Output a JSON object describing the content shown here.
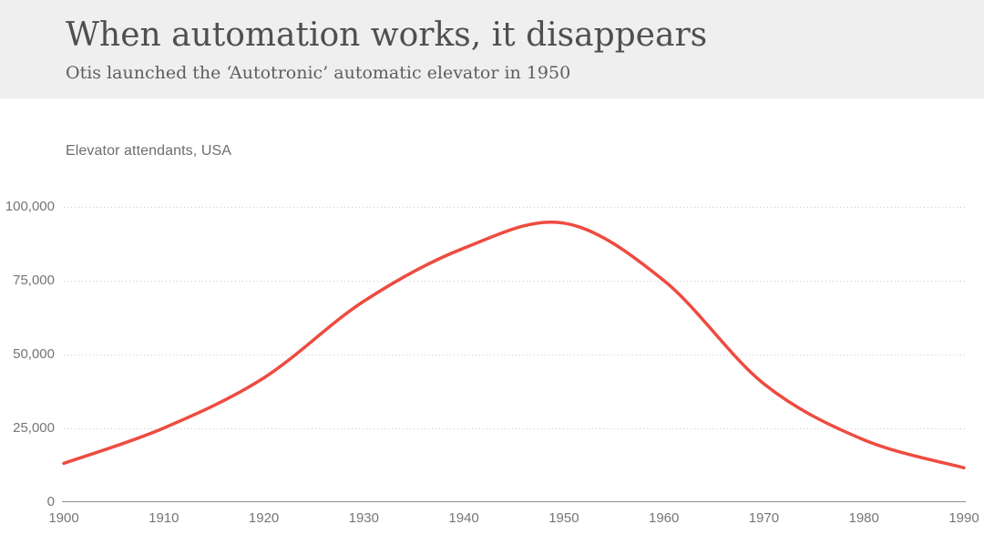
{
  "header": {
    "title": "When automation works, it disappears",
    "subtitle": "Otis launched the ‘Autotronic’ automatic elevator in 1950"
  },
  "colors": {
    "header_background": "#efefef",
    "line": "#ee4b40",
    "title_text": "#4f4f4f",
    "subtitle_text": "#5e5e5e",
    "tick_text": "#757575",
    "gridline": "#cbcbcb",
    "axis_line": "#8f8f8f"
  },
  "chart_data": {
    "type": "line",
    "title": "When automation works, it disappears",
    "subtitle": "Otis launched the ‘Autotronic’ automatic elevator in 1950",
    "series_label": "Elevator attendants, USA",
    "x": [
      1900,
      1910,
      1920,
      1930,
      1940,
      1950,
      1960,
      1970,
      1980,
      1990
    ],
    "values": [
      13000,
      25000,
      42000,
      68000,
      86000,
      94500,
      75000,
      40000,
      21000,
      11500
    ],
    "peak": {
      "year": 1950,
      "value": 94500
    },
    "xlim": [
      1900,
      1990
    ],
    "ylim": [
      0,
      100000
    ],
    "grid": "horizontal-dotted",
    "legend": "none",
    "line_color": "#ee4b40",
    "y_ticks": [
      {
        "value": 0,
        "label": "0"
      },
      {
        "value": 25000,
        "label": "25,000"
      },
      {
        "value": 50000,
        "label": "50,000"
      },
      {
        "value": 75000,
        "label": "75,000"
      },
      {
        "value": 100000,
        "label": "100,000"
      }
    ],
    "x_ticks": [
      {
        "value": 1900,
        "label": "1900"
      },
      {
        "value": 1910,
        "label": "1910"
      },
      {
        "value": 1920,
        "label": "1920"
      },
      {
        "value": 1930,
        "label": "1930"
      },
      {
        "value": 1940,
        "label": "1940"
      },
      {
        "value": 1950,
        "label": "1950"
      },
      {
        "value": 1960,
        "label": "1960"
      },
      {
        "value": 1970,
        "label": "1970"
      },
      {
        "value": 1980,
        "label": "1980"
      },
      {
        "value": 1990,
        "label": "1990"
      }
    ]
  }
}
